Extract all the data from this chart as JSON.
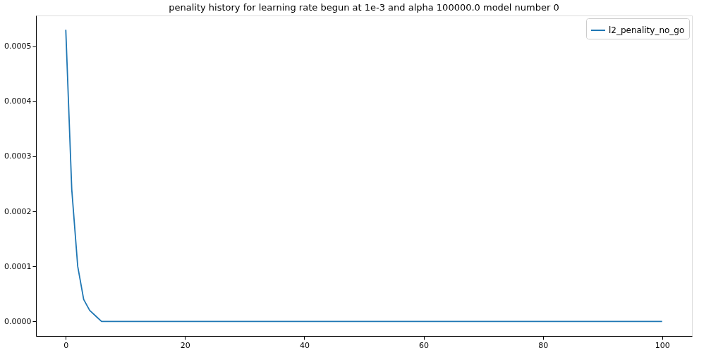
{
  "chart_data": {
    "type": "line",
    "title": "penality history for learning rate begun at 1e-3 and alpha 100000.0 model number 0",
    "x": [
      0,
      1,
      2,
      3,
      4,
      5,
      6,
      7,
      8,
      9,
      10,
      11,
      12,
      13,
      14,
      15,
      16,
      17,
      18,
      19,
      20,
      21,
      22,
      23,
      24,
      25,
      26,
      27,
      28,
      29,
      30,
      31,
      32,
      33,
      34,
      35,
      36,
      37,
      38,
      39,
      40,
      41,
      42,
      43,
      44,
      45,
      46,
      47,
      48,
      49,
      50,
      51,
      52,
      53,
      54,
      55,
      56,
      57,
      58,
      59,
      60,
      61,
      62,
      63,
      64,
      65,
      66,
      67,
      68,
      69,
      70,
      71,
      72,
      73,
      74,
      75,
      76,
      77,
      78,
      79,
      80,
      81,
      82,
      83,
      84,
      85,
      86,
      87,
      88,
      89,
      90,
      91,
      92,
      93,
      94,
      95,
      96,
      97,
      98,
      99,
      100
    ],
    "series": [
      {
        "name": "l2_penality_no_go",
        "color": "#1f77b4",
        "values": [
          0.00053,
          0.00024,
          0.0001,
          4e-05,
          2e-05,
          1e-05,
          0,
          0,
          0,
          0,
          0,
          0,
          0,
          0,
          0,
          0,
          0,
          0,
          0,
          0,
          0,
          0,
          0,
          0,
          0,
          0,
          0,
          0,
          0,
          0,
          0,
          0,
          0,
          0,
          0,
          0,
          0,
          0,
          0,
          0,
          0,
          0,
          0,
          0,
          0,
          0,
          0,
          0,
          0,
          0,
          0,
          0,
          0,
          0,
          0,
          0,
          0,
          0,
          0,
          0,
          0,
          0,
          0,
          0,
          0,
          0,
          0,
          0,
          0,
          0,
          0,
          0,
          0,
          0,
          0,
          0,
          0,
          0,
          0,
          0,
          0,
          0,
          0,
          0,
          0,
          0,
          0,
          0,
          0,
          0,
          0,
          0,
          0,
          0,
          0,
          0,
          0,
          0,
          0,
          0,
          0
        ]
      }
    ],
    "xlim": [
      -5,
      105
    ],
    "xticks": [
      0,
      20,
      40,
      60,
      80,
      100
    ],
    "ylim": [
      -2.65e-05,
      0.000556
    ],
    "yticks": [
      {
        "value": 0,
        "label": "0.0000"
      },
      {
        "value": 0.0001,
        "label": "0.0001"
      },
      {
        "value": 0.0002,
        "label": "0.0002"
      },
      {
        "value": 0.0003,
        "label": "0.0003"
      },
      {
        "value": 0.0004,
        "label": "0.0004"
      },
      {
        "value": 0.0005,
        "label": "0.0005"
      }
    ],
    "legend": "top right",
    "grid": false,
    "marker": "none",
    "line_style": "solid"
  }
}
